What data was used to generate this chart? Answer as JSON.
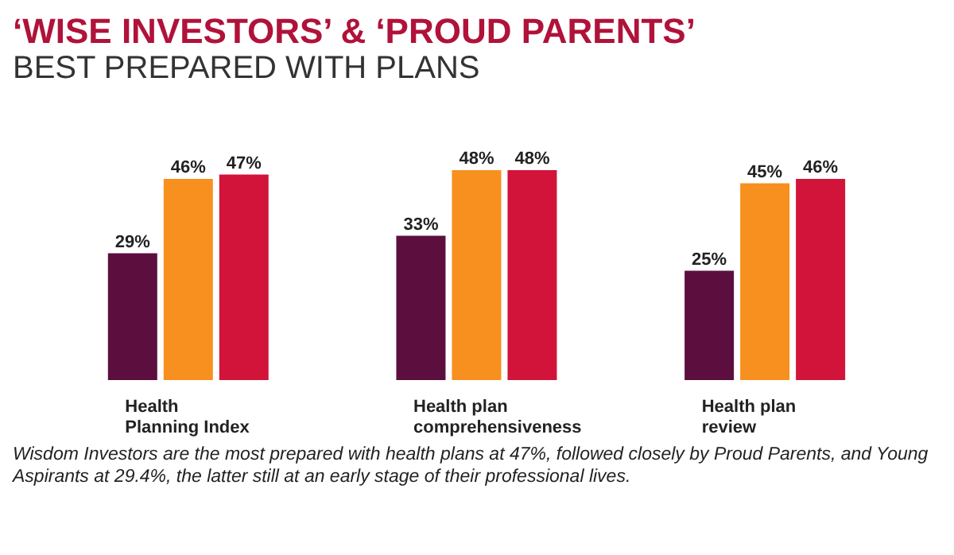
{
  "chart_data": {
    "type": "bar",
    "title": "‘WISE INVESTORS’ & ‘PROUD PARENTS’",
    "subtitle": "BEST PREPARED WITH PLANS",
    "categories": [
      "Health Planning Index",
      "Health plan comprehensiveness",
      "Health plan review"
    ],
    "series": [
      {
        "color": "#5c0f3f",
        "values": [
          29,
          33,
          25
        ],
        "value_labels": [
          "29%",
          "33%",
          "25%"
        ]
      },
      {
        "color": "#f7901e",
        "values": [
          46,
          48,
          45
        ],
        "value_labels": [
          "46%",
          "48%",
          "45%"
        ]
      },
      {
        "color": "#d2143a",
        "values": [
          47,
          48,
          46
        ],
        "value_labels": [
          "47%",
          "48%",
          "46%"
        ]
      }
    ],
    "annotations": [
      "Wisdom Investors are the most prepared with health plans at 47%, followed closely by Proud Parents, and Young Aspirants at 29.4%, the latter still at an early stage of their professional lives."
    ],
    "grid": false,
    "legend": false
  }
}
